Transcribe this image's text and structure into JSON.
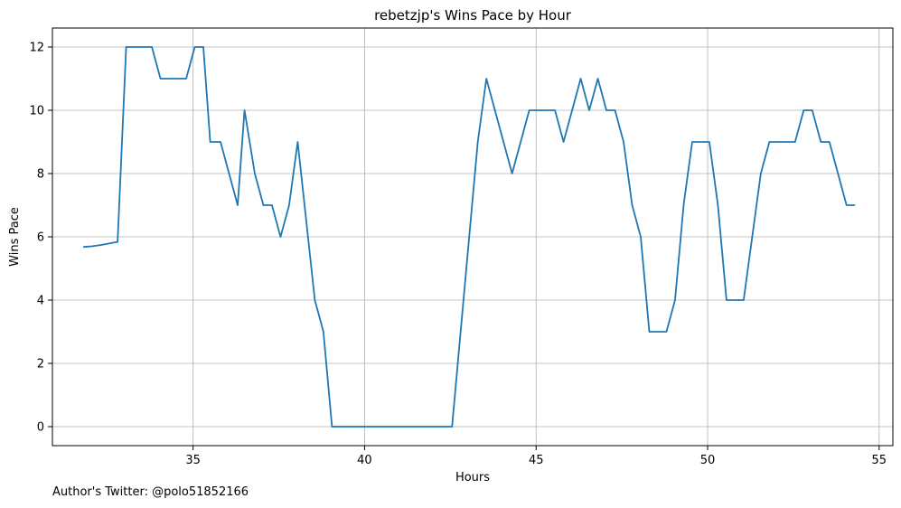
{
  "chart_data": {
    "type": "line",
    "title": "rebetzjp's Wins Pace by Hour",
    "xlabel": "Hours",
    "ylabel": "Wins Pace",
    "xlim": [
      30.9,
      55.4
    ],
    "ylim": [
      -0.6,
      12.6
    ],
    "xticks": [
      35,
      40,
      45,
      50,
      55
    ],
    "yticks": [
      0,
      2,
      4,
      6,
      8,
      10,
      12
    ],
    "grid": true,
    "line_color": "#1f77b4",
    "series": [
      {
        "x": [
          31.8,
          32.05,
          32.3,
          32.55,
          32.8,
          33.05,
          33.3,
          33.55,
          33.8,
          34.05,
          34.3,
          34.55,
          34.8,
          35.05,
          35.3,
          35.5,
          35.8,
          36.05,
          36.3,
          36.5,
          36.8,
          37.05,
          37.3,
          37.55,
          37.8,
          38.05,
          38.3,
          38.55,
          38.8,
          39.05,
          39.3,
          39.55,
          39.8,
          40.05,
          40.3,
          40.55,
          40.8,
          41.05,
          41.3,
          41.55,
          41.8,
          42.05,
          42.3,
          42.55,
          42.8,
          43.05,
          43.3,
          43.55,
          43.8,
          44.05,
          44.3,
          44.55,
          44.8,
          45.05,
          45.3,
          45.55,
          45.8,
          46.05,
          46.3,
          46.55,
          46.8,
          47.05,
          47.3,
          47.55,
          47.8,
          48.05,
          48.3,
          48.55,
          48.8,
          49.05,
          49.3,
          49.55,
          49.8,
          50.05,
          50.3,
          50.55,
          50.8,
          51.05,
          51.3,
          51.55,
          51.8,
          52.05,
          52.3,
          52.55,
          52.8,
          53.05,
          53.3,
          53.55,
          53.8,
          54.05,
          54.3
        ],
        "y": [
          5.68,
          5.7,
          5.74,
          5.79,
          5.84,
          12,
          12,
          12,
          12,
          11,
          11,
          11,
          11,
          12,
          12,
          9,
          9,
          8,
          7,
          10,
          8,
          7,
          7,
          6,
          7,
          9,
          6.5,
          4,
          3,
          0,
          0,
          0,
          0,
          0,
          0,
          0,
          0,
          0,
          0,
          0,
          0,
          0,
          0,
          0,
          3,
          6,
          9,
          11,
          10,
          9,
          8,
          9,
          10,
          10,
          10,
          10,
          9,
          10,
          11,
          10,
          11,
          10,
          10,
          9,
          7,
          6,
          3,
          3,
          3,
          4,
          7,
          9,
          9,
          9,
          7,
          4,
          4,
          4,
          6,
          8,
          9,
          9,
          9,
          9,
          10,
          10,
          9,
          9,
          8,
          7,
          7
        ]
      }
    ]
  },
  "footer": {
    "note": "Author's Twitter: @polo51852166"
  }
}
